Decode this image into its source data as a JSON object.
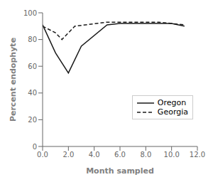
{
  "chart_data": {
    "type": "line",
    "xlabel": "Month sampled",
    "ylabel": "Percent endophyte",
    "series": [
      {
        "name": "Oregon",
        "color": "#1a1a1a",
        "line_style": "solid",
        "x": [
          0,
          1,
          2,
          3,
          5,
          6,
          7,
          8,
          9,
          10,
          11
        ],
        "values": [
          91,
          70,
          55,
          75,
          91,
          92,
          92,
          92,
          92,
          92,
          90
        ]
      },
      {
        "name": "Georgia",
        "color": "#1a1a1a",
        "line_style": "dashed",
        "x": [
          0,
          1,
          1.5,
          2.5,
          5,
          6,
          7,
          8,
          9,
          10,
          11
        ],
        "values": [
          90,
          85,
          80,
          90,
          93,
          93,
          93,
          93,
          93,
          92,
          91
        ]
      }
    ],
    "xlim": [
      0,
      12
    ],
    "ylim": [
      0,
      100
    ],
    "xticks": [
      {
        "value": 0,
        "label": "0.0"
      },
      {
        "value": 2,
        "label": "2.0"
      },
      {
        "value": 4,
        "label": "4.0"
      },
      {
        "value": 6,
        "label": "6.0"
      },
      {
        "value": 8,
        "label": "8.0"
      },
      {
        "value": 10,
        "label": "10.0"
      },
      {
        "value": 12,
        "label": "12.0"
      }
    ],
    "yticks": [
      0,
      20,
      40,
      60,
      80,
      100
    ],
    "grid": false,
    "legend": "lower right"
  }
}
